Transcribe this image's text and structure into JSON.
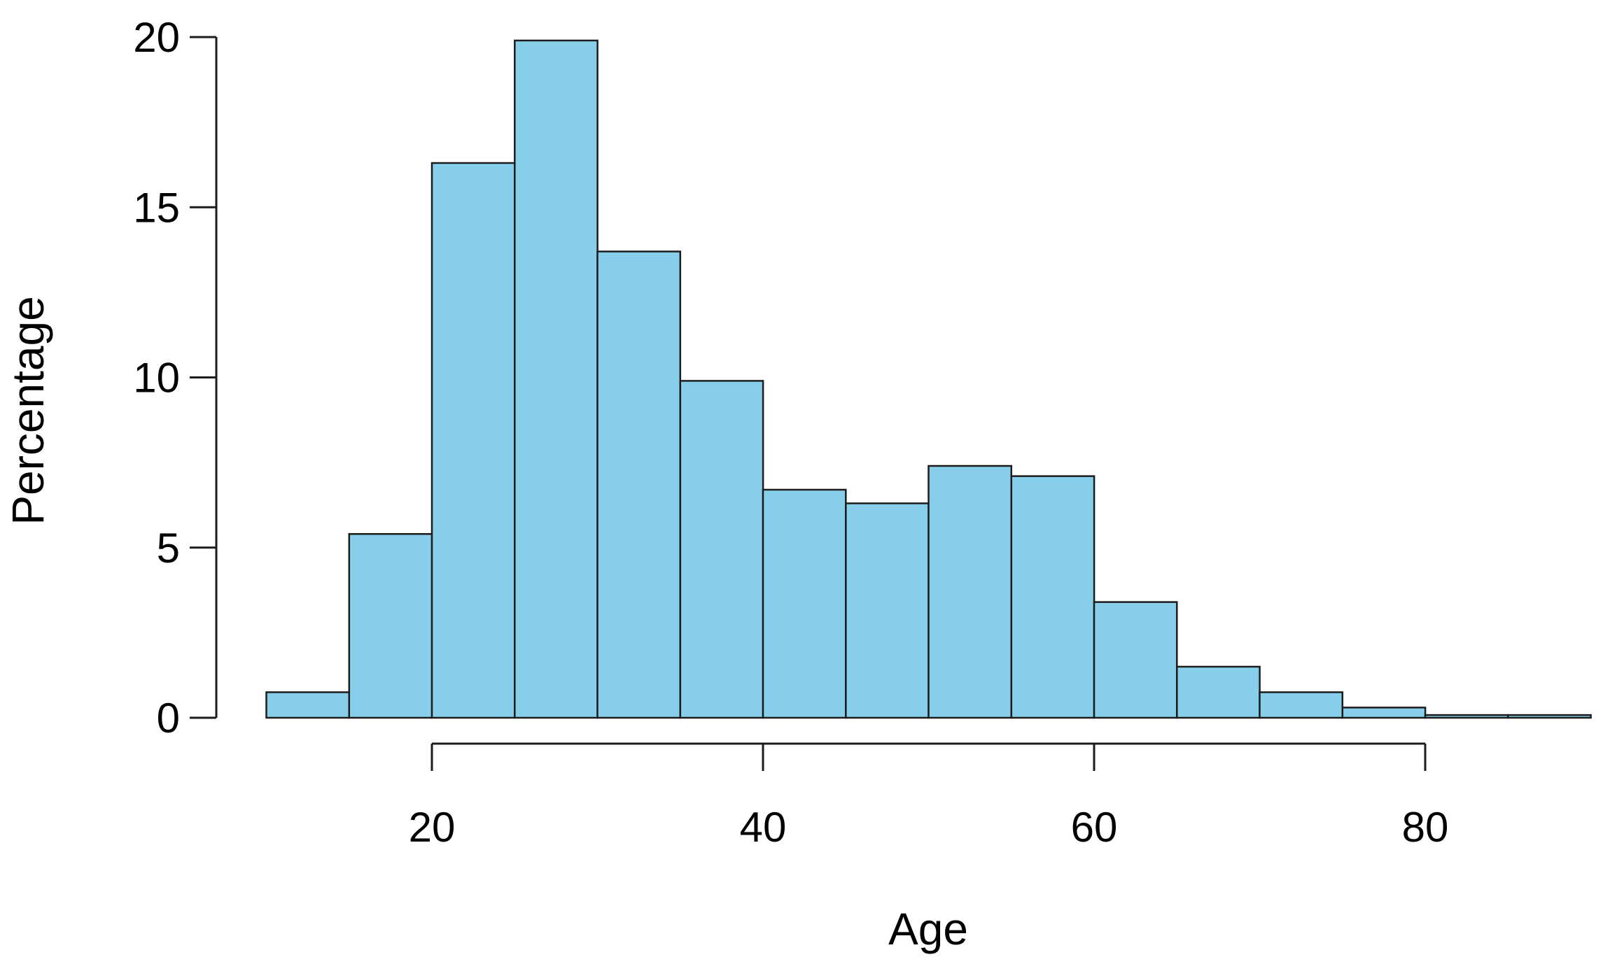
{
  "chart_data": {
    "type": "bar",
    "subtype": "histogram",
    "title": "",
    "xlabel": "Age",
    "ylabel": "Percentage",
    "xlim": [
      10,
      90
    ],
    "ylim": [
      0,
      20
    ],
    "x_ticks": [
      20,
      40,
      60,
      80
    ],
    "y_ticks": [
      0,
      5,
      10,
      15,
      20
    ],
    "bin_width": 5,
    "bin_edges": [
      10,
      15,
      20,
      25,
      30,
      35,
      40,
      45,
      50,
      55,
      60,
      65,
      70,
      75,
      80,
      85,
      90
    ],
    "categories": [
      "10-15",
      "15-20",
      "20-25",
      "25-30",
      "30-35",
      "35-40",
      "40-45",
      "45-50",
      "50-55",
      "55-60",
      "60-65",
      "65-70",
      "70-75",
      "75-80",
      "80-85",
      "85-90"
    ],
    "values": [
      0.75,
      5.4,
      16.3,
      19.9,
      13.7,
      9.9,
      6.7,
      6.3,
      7.4,
      7.1,
      3.4,
      1.5,
      0.75,
      0.3,
      0.08,
      0.08
    ],
    "grid": "off",
    "legend": "none",
    "colors": {
      "bar_fill": "#87CEEB",
      "bar_border": "#1c1c1c",
      "axis": "#1c1c1c",
      "text": "#000000",
      "background": "#ffffff"
    }
  }
}
